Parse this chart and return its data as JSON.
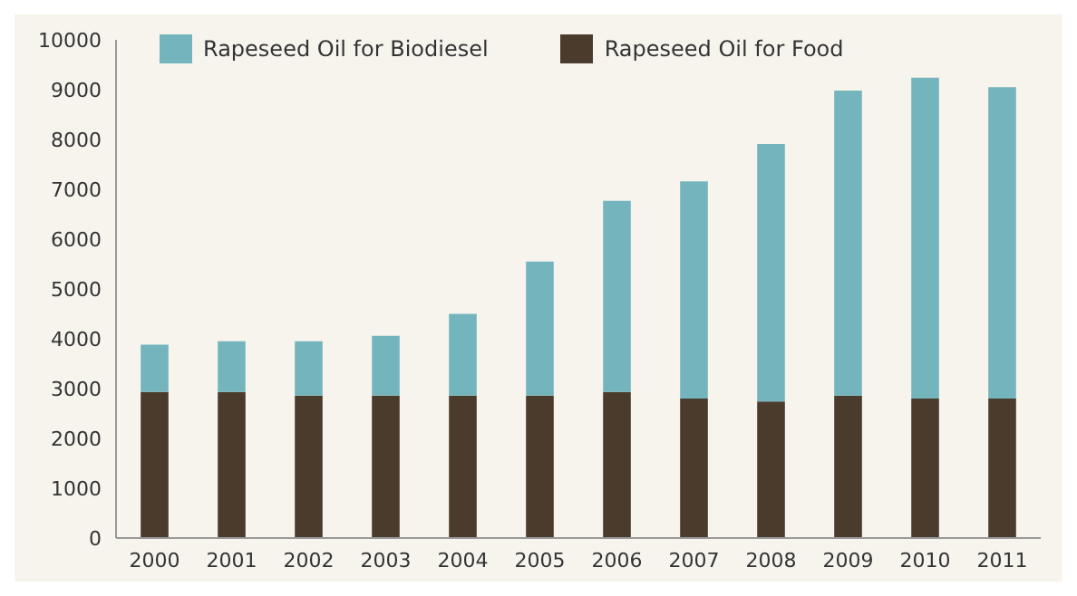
{
  "chart_data": {
    "type": "bar",
    "stacked": true,
    "categories": [
      "2000",
      "2001",
      "2002",
      "2003",
      "2004",
      "2005",
      "2006",
      "2007",
      "2008",
      "2009",
      "2010",
      "2011"
    ],
    "series": [
      {
        "name": "Rapeseed Oil for Food",
        "color": "#4a3b2c",
        "values": [
          2930,
          2930,
          2860,
          2860,
          2860,
          2860,
          2930,
          2800,
          2740,
          2860,
          2800,
          2800
        ]
      },
      {
        "name": "Rapeseed Oil for Biodiesel",
        "color": "#74b5bd",
        "values": [
          950,
          1020,
          1090,
          1200,
          1640,
          2690,
          3840,
          4360,
          5170,
          6120,
          6440,
          6250
        ]
      }
    ],
    "ylim": [
      0,
      10000
    ],
    "yticks": [
      0,
      1000,
      2000,
      3000,
      4000,
      5000,
      6000,
      7000,
      8000,
      9000,
      10000
    ],
    "grid": false,
    "legend": "top"
  }
}
